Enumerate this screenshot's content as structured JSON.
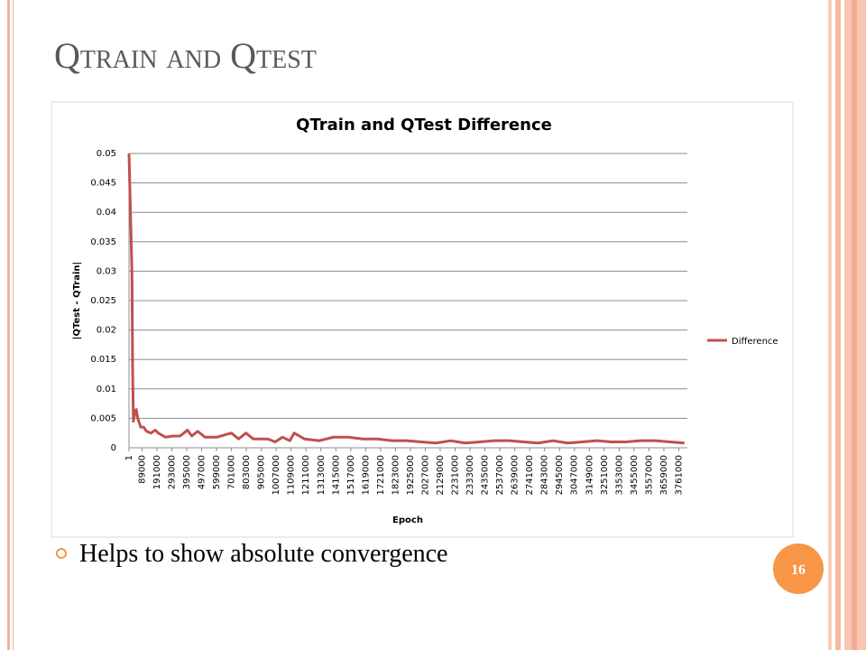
{
  "slide_title": "Qtrain and Qtest",
  "bullet": "Helps to show absolute convergence",
  "page_number": "16",
  "chart_data": {
    "type": "line",
    "title": "QTrain and QTest Difference",
    "x_label": "Epoch",
    "y_label": "|QTest - QTrain|",
    "x": [
      1,
      10000,
      20000,
      25000,
      30000,
      40000,
      50000,
      60000,
      80000,
      100000,
      120000,
      150000,
      180000,
      200000,
      250000,
      300000,
      350000,
      400000,
      430000,
      470000,
      520000,
      600000,
      700000,
      750000,
      800000,
      850000,
      950000,
      1000000,
      1050000,
      1100000,
      1130000,
      1200000,
      1300000,
      1400000,
      1500000,
      1600000,
      1700000,
      1800000,
      1900000,
      2000000,
      2100000,
      2200000,
      2300000,
      2400000,
      2500000,
      2600000,
      2700000,
      2800000,
      2900000,
      3000000,
      3100000,
      3200000,
      3300000,
      3400000,
      3500000,
      3600000,
      3700000,
      3800000
    ],
    "series": [
      {
        "name": "Difference",
        "color": "#c0504d",
        "values": [
          0.05,
          0.04,
          0.03,
          0.013,
          0.0045,
          0.006,
          0.0065,
          0.005,
          0.0035,
          0.0035,
          0.0028,
          0.0025,
          0.003,
          0.0025,
          0.0018,
          0.002,
          0.002,
          0.003,
          0.002,
          0.0028,
          0.0018,
          0.0018,
          0.0025,
          0.0015,
          0.0025,
          0.0015,
          0.0015,
          0.001,
          0.0018,
          0.0012,
          0.0025,
          0.0015,
          0.0012,
          0.0018,
          0.0018,
          0.0015,
          0.0015,
          0.0012,
          0.0012,
          0.001,
          0.0008,
          0.0012,
          0.0008,
          0.001,
          0.0012,
          0.0012,
          0.001,
          0.0008,
          0.0012,
          0.0008,
          0.001,
          0.0012,
          0.001,
          0.001,
          0.0012,
          0.0012,
          0.001,
          0.0008
        ]
      }
    ],
    "xlim": [
      1,
      3820000
    ],
    "xticks": [
      1,
      89000,
      191000,
      293000,
      395000,
      497000,
      599000,
      701000,
      803000,
      905000,
      1007000,
      1109000,
      1211000,
      1313000,
      1415000,
      1517000,
      1619000,
      1721000,
      1823000,
      1925000,
      2027000,
      2129000,
      2231000,
      2333000,
      2435000,
      2537000,
      2639000,
      2741000,
      2843000,
      2945000,
      3047000,
      3149000,
      3251000,
      3353000,
      3455000,
      3557000,
      3659000,
      3761000
    ],
    "ylim": [
      0,
      0.05
    ],
    "yticks": [
      0,
      0.005,
      0.01,
      0.015,
      0.02,
      0.025,
      0.03,
      0.035,
      0.04,
      0.045,
      0.05
    ],
    "grid": true,
    "legend": "right"
  }
}
